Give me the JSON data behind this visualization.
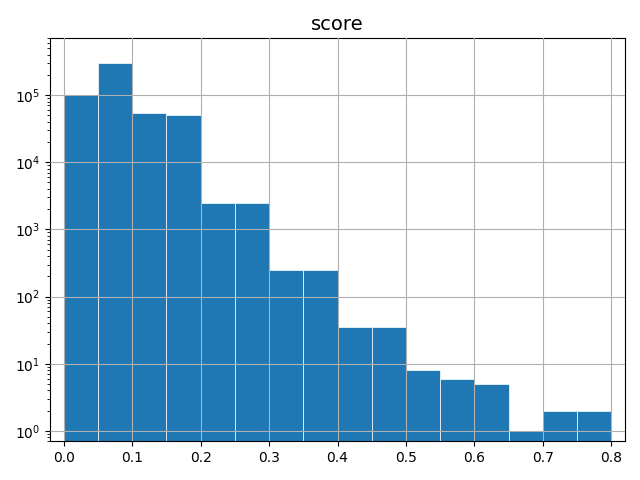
{
  "title": "score",
  "bin_edges": [
    0.0,
    0.05,
    0.1,
    0.15,
    0.2,
    0.25,
    0.3,
    0.35,
    0.4,
    0.45,
    0.5,
    0.55,
    0.6,
    0.65,
    0.7,
    0.75,
    0.8
  ],
  "counts": [
    100000,
    300000,
    55000,
    50000,
    2500,
    2500,
    250,
    250,
    35,
    35,
    8,
    6,
    5,
    1,
    2,
    2
  ],
  "bar_color": "#1f77b4",
  "title_fontsize": 14,
  "xlim": [
    -0.02,
    0.82
  ],
  "ylim": [
    0.7,
    700000
  ],
  "xticks": [
    0.0,
    0.1,
    0.2,
    0.3,
    0.4,
    0.5,
    0.6,
    0.7,
    0.8
  ],
  "grid_color": "#b0b0b0",
  "grid_linewidth": 0.8
}
